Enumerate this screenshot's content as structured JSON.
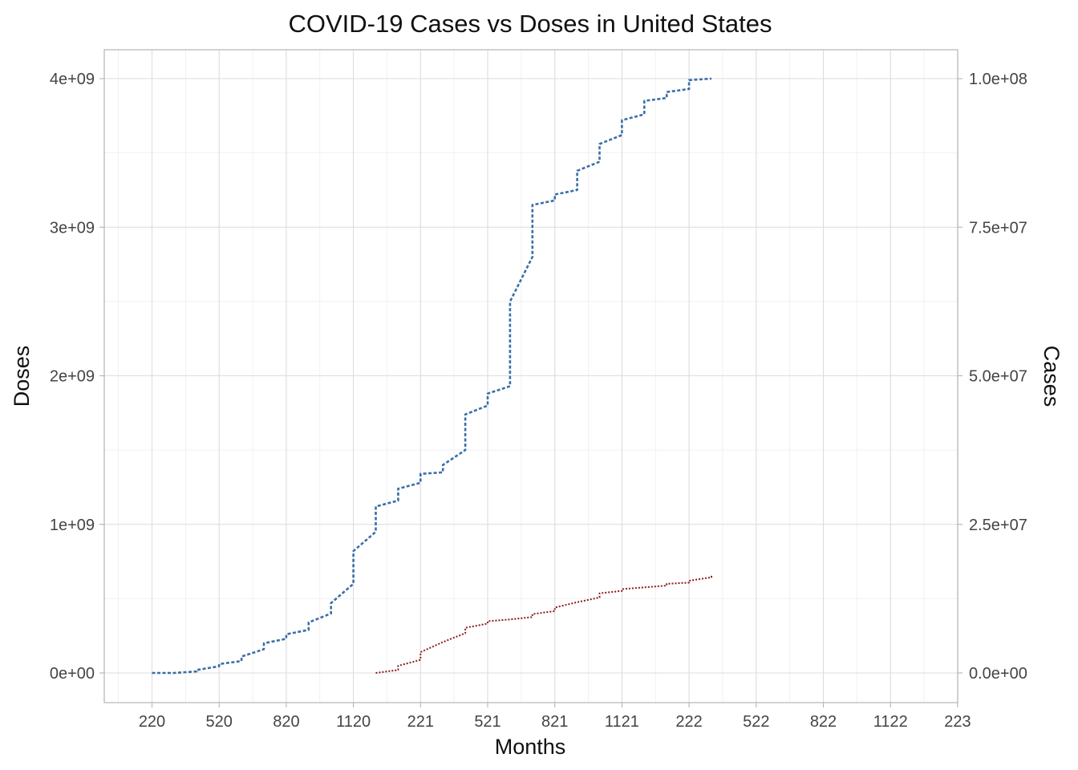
{
  "chart_data": {
    "type": "line",
    "title": "COVID-19 Cases vs Doses in United States",
    "xlabel": "Months",
    "ylabel": "Doses",
    "y2label": "Cases",
    "x_ticks": [
      "220",
      "520",
      "820",
      "1120",
      "221",
      "521",
      "821",
      "1121",
      "222",
      "522",
      "822",
      "1122",
      "223"
    ],
    "y_ticks": [
      "0e+00",
      "1e+09",
      "2e+09",
      "3e+09",
      "4e+09"
    ],
    "y_tick_values": [
      0,
      1000000000,
      2000000000,
      3000000000,
      4000000000
    ],
    "y2_ticks": [
      "0.0e+00",
      "2.5e+07",
      "5.0e+07",
      "7.5e+07",
      "1.0e+08"
    ],
    "y2_tick_values": [
      0,
      25000000,
      50000000,
      75000000,
      100000000
    ],
    "ylim": [
      -200000000,
      4200000000
    ],
    "grid": true,
    "legend": "none",
    "series": [
      {
        "color": "#3a6fa8",
        "axis": "left",
        "x": [
          220,
          290,
          320,
          360,
          420,
          460,
          520,
          560,
          620,
          660,
          720,
          760,
          820,
          880,
          920,
          980,
          1020,
          1080,
          1120,
          1160,
          1190,
          1220,
          1250,
          1280,
          1310,
          1340,
          1370,
          1400,
          1440,
          1480,
          1520,
          1560,
          1600,
          1640,
          1680,
          1710,
          1740,
          1770,
          1800,
          1830,
          1860,
          1890,
          1920,
          1950,
          1980,
          2010,
          2040,
          2070,
          2100,
          2130,
          2160,
          2190,
          2220,
          2250,
          2280,
          2310,
          2340,
          2370,
          2400,
          2430,
          2460,
          2490,
          2520,
          2550,
          2580,
          2610,
          2640,
          2670,
          2700,
          2730,
          2760,
          2790
        ],
        "values": [
          0,
          0,
          0,
          0,
          10000000,
          20000000,
          45000000,
          60000000,
          80000000,
          110000000,
          160000000,
          200000000,
          230000000,
          260000000,
          290000000,
          340000000,
          400000000,
          470000000,
          600000000,
          720000000,
          820000000,
          950000000,
          1060000000,
          1120000000,
          1160000000,
          1200000000,
          1240000000,
          1280000000,
          1320000000,
          1340000000,
          1350000000,
          1400000000,
          1500000000,
          1620000000,
          1740000000,
          1800000000,
          1840000000,
          1880000000,
          1930000000,
          2000000000,
          2150000000,
          2500000000,
          2800000000,
          3050000000,
          3150000000,
          3180000000,
          3200000000,
          3220000000,
          3250000000,
          3280000000,
          3320000000,
          3380000000,
          3440000000,
          3500000000,
          3560000000,
          3620000000,
          3680000000,
          3720000000,
          3760000000,
          3800000000,
          3830000000,
          3850000000,
          3870000000,
          3890000000,
          3910000000,
          3930000000,
          3960000000,
          3990000000,
          4000000000,
          4000000000,
          4000000000,
          4000000000
        ]
      },
      {
        "color": "#8b1a1a",
        "axis": "right",
        "x": [
          1220,
          1300,
          1360,
          1420,
          1480,
          1540,
          1600,
          1660,
          1720,
          1780,
          1840,
          1900,
          1960,
          2020,
          2080,
          2140,
          2200,
          2260,
          2320,
          2380,
          2440,
          2500,
          2560,
          2620,
          2680,
          2720,
          2760
        ],
        "values": [
          0,
          500000,
          1200000,
          2200000,
          3500000,
          5200000,
          6700000,
          7600000,
          8300000,
          8700000,
          9000000,
          9400000,
          9900000,
          10400000,
          11000000,
          11900000,
          12700000,
          13400000,
          13800000,
          14100000,
          14400000,
          14700000,
          15000000,
          15200000,
          15500000,
          16100000,
          16600000
        ]
      }
    ]
  }
}
